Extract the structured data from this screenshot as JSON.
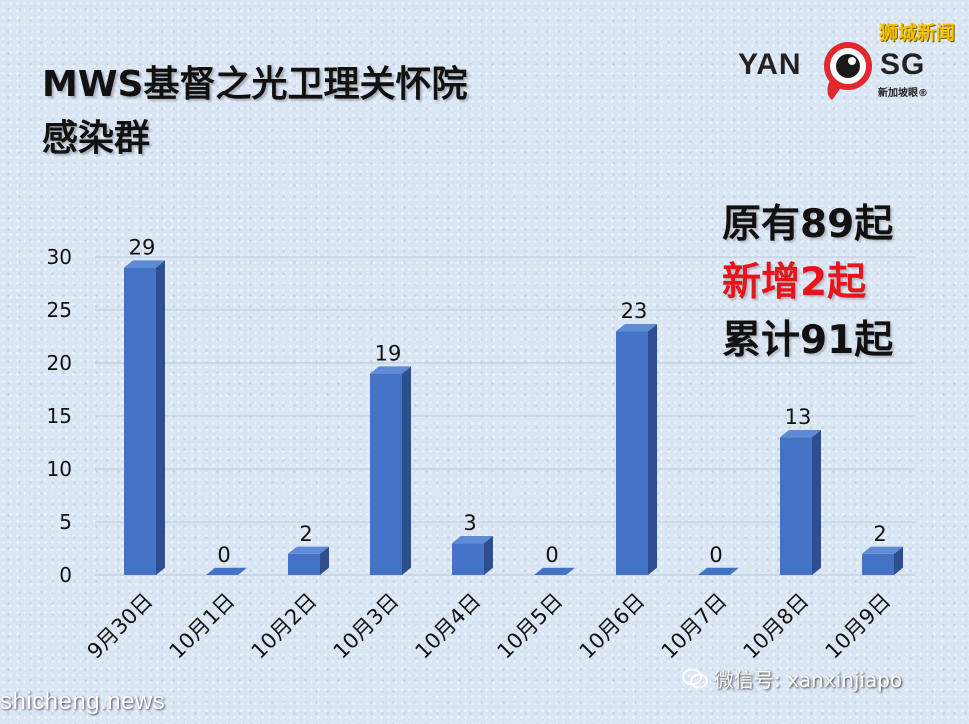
{
  "header": {
    "title_line1": "MWS基督之光卫理关怀院",
    "title_line2": "感染群"
  },
  "logo": {
    "left_text": "YAN",
    "right_text": "SG",
    "subtext": "新加坡眼®",
    "top_text": "狮城新闻"
  },
  "summary": {
    "total": "原有89起",
    "new": "新增2起",
    "cumulative": "累计91起"
  },
  "footer": {
    "site": "shicheng.news",
    "wechat_id": "微信号: xanxinjiapo"
  },
  "colors": {
    "bar_front": "#4472c4",
    "bar_side": "#2e4f8f",
    "bar_top": "#5f8ad6",
    "new_cases": "#e8141c"
  },
  "chart_data": {
    "type": "bar",
    "categories": [
      "9月30日",
      "10月1日",
      "10月2日",
      "10月3日",
      "10月4日",
      "10月5日",
      "10月6日",
      "10月7日",
      "10月8日",
      "10月9日"
    ],
    "values": [
      29,
      0,
      2,
      19,
      3,
      0,
      23,
      0,
      13,
      2
    ],
    "yticks": [
      0,
      5,
      10,
      15,
      20,
      25,
      30
    ],
    "ylim": [
      0,
      30
    ],
    "grid": true,
    "data_labels": true
  }
}
